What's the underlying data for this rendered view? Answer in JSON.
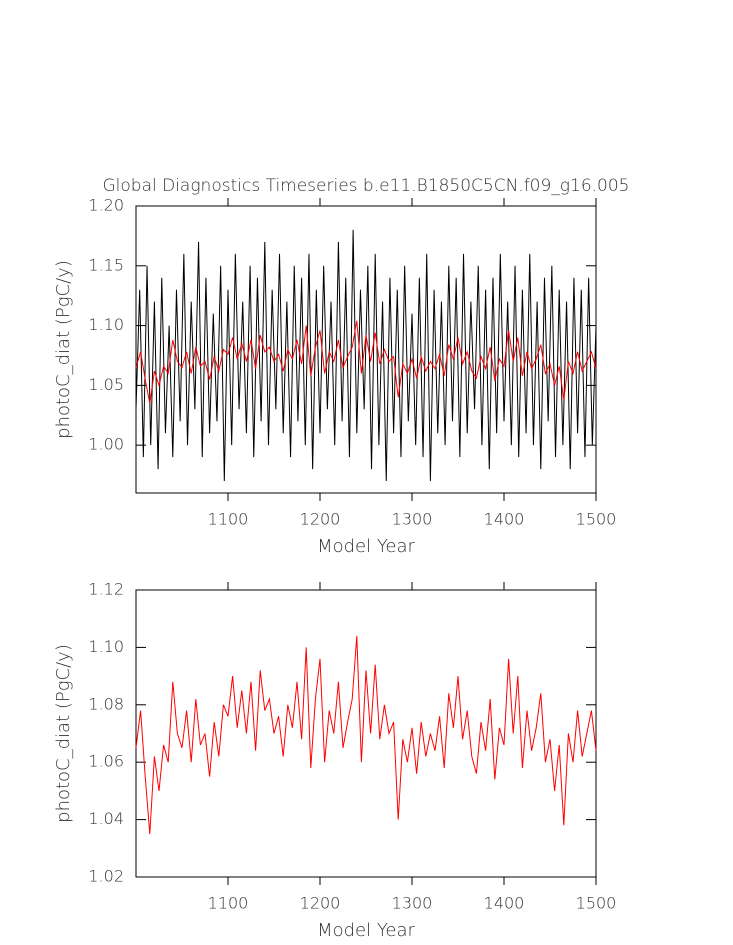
{
  "chart_data": [
    {
      "type": "line",
      "title": "Global Diagnostics Timeseries b.e11.B1850C5CN.f09_g16.005",
      "ylabel": "photoC_diat (PgC/y)",
      "xlabel": "Model Year",
      "xlim": [
        1000,
        1500
      ],
      "ylim": [
        0.96,
        1.2
      ],
      "xticks": [
        1100,
        1200,
        1300,
        1400,
        1500
      ],
      "yticks": [
        {
          "value": 1.0,
          "label": "1.00"
        },
        1.05,
        {
          "value": 1.1,
          "label": "1.10"
        },
        1.15,
        {
          "value": 1.2,
          "label": "1.20"
        }
      ],
      "series": [
        {
          "color": "#000000",
          "x": [
            1000,
            1004,
            1008,
            1012,
            1016,
            1020,
            1024,
            1028,
            1032,
            1036,
            1040,
            1044,
            1048,
            1052,
            1056,
            1060,
            1064,
            1068,
            1072,
            1076,
            1080,
            1084,
            1088,
            1092,
            1096,
            1100,
            1104,
            1108,
            1112,
            1116,
            1120,
            1124,
            1128,
            1132,
            1136,
            1140,
            1144,
            1148,
            1152,
            1156,
            1160,
            1164,
            1168,
            1172,
            1176,
            1180,
            1184,
            1188,
            1192,
            1196,
            1200,
            1204,
            1208,
            1212,
            1216,
            1220,
            1224,
            1228,
            1232,
            1236,
            1240,
            1244,
            1248,
            1252,
            1256,
            1260,
            1264,
            1268,
            1272,
            1276,
            1280,
            1284,
            1288,
            1292,
            1296,
            1300,
            1304,
            1308,
            1312,
            1316,
            1320,
            1324,
            1328,
            1332,
            1336,
            1340,
            1344,
            1348,
            1352,
            1356,
            1360,
            1364,
            1368,
            1372,
            1376,
            1380,
            1384,
            1388,
            1392,
            1396,
            1400,
            1404,
            1408,
            1412,
            1416,
            1420,
            1424,
            1428,
            1432,
            1436,
            1440,
            1444,
            1448,
            1452,
            1456,
            1460,
            1464,
            1468,
            1472,
            1476,
            1480,
            1484,
            1488,
            1492,
            1496,
            1500
          ],
          "values": [
            1.03,
            1.13,
            0.99,
            1.15,
            1.0,
            1.12,
            0.98,
            1.14,
            1.01,
            1.1,
            0.99,
            1.13,
            1.02,
            1.16,
            1.0,
            1.12,
            1.03,
            1.17,
            0.99,
            1.14,
            1.01,
            1.11,
            1.02,
            1.15,
            0.97,
            1.13,
            1.0,
            1.16,
            1.03,
            1.12,
            1.01,
            1.15,
            0.99,
            1.14,
            1.02,
            1.17,
            1.0,
            1.13,
            1.03,
            1.16,
            1.01,
            1.12,
            0.99,
            1.15,
            1.02,
            1.14,
            1.0,
            1.16,
            0.98,
            1.13,
            1.01,
            1.15,
            1.03,
            1.12,
            1.0,
            1.17,
            1.02,
            1.14,
            0.99,
            1.18,
            1.01,
            1.13,
            1.03,
            1.15,
            0.98,
            1.16,
            1.0,
            1.12,
            0.97,
            1.14,
            1.01,
            1.13,
            0.99,
            1.15,
            1.02,
            1.11,
            1.0,
            1.14,
            0.99,
            1.16,
            0.97,
            1.13,
            1.01,
            1.12,
            1.0,
            1.15,
            1.02,
            1.14,
            0.99,
            1.16,
            1.01,
            1.12,
            1.03,
            1.15,
            1.0,
            1.13,
            0.98,
            1.14,
            1.01,
            1.16,
            1.02,
            1.12,
            1.0,
            1.15,
            0.99,
            1.13,
            1.01,
            1.16,
            1.0,
            1.12,
            0.98,
            1.14,
            1.02,
            1.15,
            0.99,
            1.13,
            1.0,
            1.12,
            0.98,
            1.14,
            1.01,
            1.13,
            0.99,
            1.14,
            1.0,
            1.1
          ]
        },
        {
          "color": "#ff0000",
          "x": [
            1000,
            1005,
            1010,
            1015,
            1020,
            1025,
            1030,
            1035,
            1040,
            1045,
            1050,
            1055,
            1060,
            1065,
            1070,
            1075,
            1080,
            1085,
            1090,
            1095,
            1100,
            1105,
            1110,
            1115,
            1120,
            1125,
            1130,
            1135,
            1140,
            1145,
            1150,
            1155,
            1160,
            1165,
            1170,
            1175,
            1180,
            1185,
            1190,
            1195,
            1200,
            1205,
            1210,
            1215,
            1220,
            1225,
            1230,
            1235,
            1240,
            1245,
            1250,
            1255,
            1260,
            1265,
            1270,
            1275,
            1280,
            1285,
            1290,
            1295,
            1300,
            1305,
            1310,
            1315,
            1320,
            1325,
            1330,
            1335,
            1340,
            1345,
            1350,
            1355,
            1360,
            1365,
            1370,
            1375,
            1380,
            1385,
            1390,
            1395,
            1400,
            1405,
            1410,
            1415,
            1420,
            1425,
            1430,
            1435,
            1440,
            1445,
            1450,
            1455,
            1460,
            1465,
            1470,
            1475,
            1480,
            1485,
            1490,
            1495,
            1500
          ],
          "values": [
            1.065,
            1.078,
            1.055,
            1.035,
            1.062,
            1.05,
            1.066,
            1.06,
            1.088,
            1.07,
            1.065,
            1.078,
            1.06,
            1.082,
            1.066,
            1.07,
            1.055,
            1.074,
            1.062,
            1.08,
            1.076,
            1.09,
            1.072,
            1.085,
            1.07,
            1.088,
            1.064,
            1.092,
            1.078,
            1.082,
            1.07,
            1.076,
            1.062,
            1.08,
            1.072,
            1.088,
            1.068,
            1.1,
            1.058,
            1.082,
            1.096,
            1.06,
            1.078,
            1.07,
            1.088,
            1.065,
            1.074,
            1.082,
            1.104,
            1.06,
            1.092,
            1.07,
            1.094,
            1.068,
            1.08,
            1.07,
            1.074,
            1.04,
            1.068,
            1.06,
            1.072,
            1.056,
            1.074,
            1.062,
            1.07,
            1.064,
            1.076,
            1.058,
            1.084,
            1.072,
            1.09,
            1.068,
            1.078,
            1.062,
            1.056,
            1.074,
            1.064,
            1.082,
            1.054,
            1.072,
            1.066,
            1.096,
            1.07,
            1.09,
            1.058,
            1.078,
            1.064,
            1.072,
            1.084,
            1.06,
            1.068,
            1.05,
            1.066,
            1.038,
            1.07,
            1.06,
            1.078,
            1.062,
            1.07,
            1.078,
            1.064
          ]
        }
      ]
    },
    {
      "type": "line",
      "ylabel": "photoC_diat (PgC/y)",
      "xlabel": "Model Year",
      "xlim": [
        1000,
        1500
      ],
      "ylim": [
        1.02,
        1.12
      ],
      "xticks": [
        1100,
        1200,
        1300,
        1400,
        1500
      ],
      "yticks": [
        1.02,
        1.04,
        1.06,
        1.08,
        {
          "value": 1.1,
          "label": "1.10"
        },
        1.12
      ],
      "series": [
        {
          "color": "#ff0000",
          "x": [
            1000,
            1005,
            1010,
            1015,
            1020,
            1025,
            1030,
            1035,
            1040,
            1045,
            1050,
            1055,
            1060,
            1065,
            1070,
            1075,
            1080,
            1085,
            1090,
            1095,
            1100,
            1105,
            1110,
            1115,
            1120,
            1125,
            1130,
            1135,
            1140,
            1145,
            1150,
            1155,
            1160,
            1165,
            1170,
            1175,
            1180,
            1185,
            1190,
            1195,
            1200,
            1205,
            1210,
            1215,
            1220,
            1225,
            1230,
            1235,
            1240,
            1245,
            1250,
            1255,
            1260,
            1265,
            1270,
            1275,
            1280,
            1285,
            1290,
            1295,
            1300,
            1305,
            1310,
            1315,
            1320,
            1325,
            1330,
            1335,
            1340,
            1345,
            1350,
            1355,
            1360,
            1365,
            1370,
            1375,
            1380,
            1385,
            1390,
            1395,
            1400,
            1405,
            1410,
            1415,
            1420,
            1425,
            1430,
            1435,
            1440,
            1445,
            1450,
            1455,
            1460,
            1465,
            1470,
            1475,
            1480,
            1485,
            1490,
            1495,
            1500
          ],
          "values": [
            1.065,
            1.078,
            1.055,
            1.035,
            1.062,
            1.05,
            1.066,
            1.06,
            1.088,
            1.07,
            1.065,
            1.078,
            1.06,
            1.082,
            1.066,
            1.07,
            1.055,
            1.074,
            1.062,
            1.08,
            1.076,
            1.09,
            1.072,
            1.085,
            1.07,
            1.088,
            1.064,
            1.092,
            1.078,
            1.082,
            1.07,
            1.076,
            1.062,
            1.08,
            1.072,
            1.088,
            1.068,
            1.1,
            1.058,
            1.082,
            1.096,
            1.06,
            1.078,
            1.07,
            1.088,
            1.065,
            1.074,
            1.082,
            1.104,
            1.06,
            1.092,
            1.07,
            1.094,
            1.068,
            1.08,
            1.07,
            1.074,
            1.04,
            1.068,
            1.06,
            1.072,
            1.056,
            1.074,
            1.062,
            1.07,
            1.064,
            1.076,
            1.058,
            1.084,
            1.072,
            1.09,
            1.068,
            1.078,
            1.062,
            1.056,
            1.074,
            1.064,
            1.082,
            1.054,
            1.072,
            1.066,
            1.096,
            1.07,
            1.09,
            1.058,
            1.078,
            1.064,
            1.072,
            1.084,
            1.06,
            1.068,
            1.05,
            1.066,
            1.038,
            1.07,
            1.06,
            1.078,
            1.062,
            1.07,
            1.078,
            1.064
          ]
        }
      ]
    }
  ]
}
